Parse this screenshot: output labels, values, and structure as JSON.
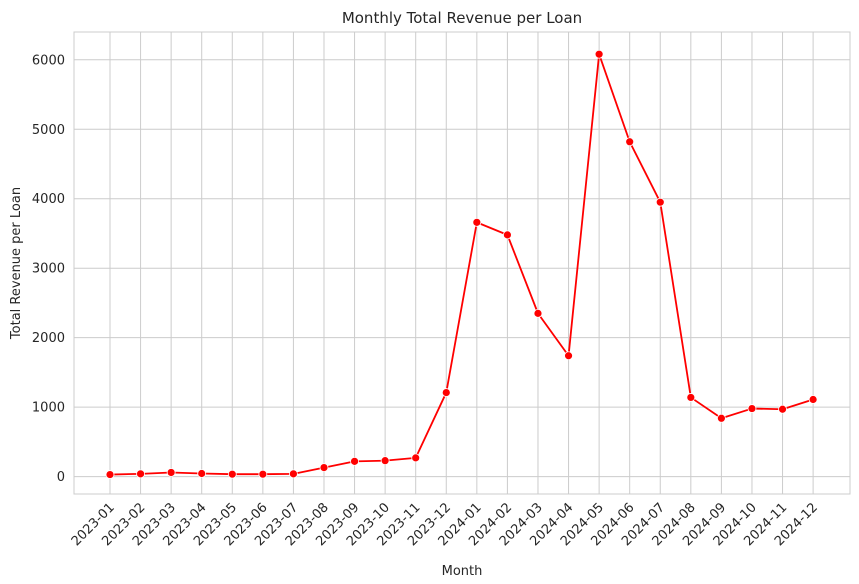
{
  "chart_data": {
    "type": "line",
    "title": "Monthly Total Revenue per Loan",
    "xlabel": "Month",
    "ylabel": "Total Revenue per Loan",
    "ylim": [
      -250,
      6400
    ],
    "yticks": [
      0,
      1000,
      2000,
      3000,
      4000,
      5000,
      6000
    ],
    "grid": true,
    "categories": [
      "2023-01",
      "2023-02",
      "2023-03",
      "2023-04",
      "2023-05",
      "2023-06",
      "2023-07",
      "2023-08",
      "2023-09",
      "2023-10",
      "2023-11",
      "2023-12",
      "2024-01",
      "2024-02",
      "2024-03",
      "2024-04",
      "2024-05",
      "2024-06",
      "2024-07",
      "2024-08",
      "2024-09",
      "2024-10",
      "2024-11",
      "2024-12"
    ],
    "series": [
      {
        "color": "#ff0000",
        "marker": "circle",
        "values": [
          30,
          40,
          60,
          45,
          35,
          35,
          40,
          130,
          220,
          230,
          270,
          1210,
          3660,
          3480,
          2350,
          1740,
          6080,
          4820,
          3950,
          1140,
          840,
          980,
          970,
          1110
        ]
      }
    ]
  }
}
